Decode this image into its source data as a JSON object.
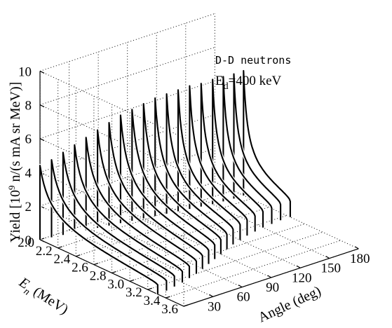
{
  "chart_data": {
    "type": "3d-line",
    "title": "",
    "xlabel": "Angle (deg)",
    "ylabel_main": "E",
    "ylabel_sub": "n",
    "ylabel_rest": " (MeV)",
    "zlabel_main": "Yield [10",
    "zlabel_sup": "9",
    "zlabel_rest": " n/(s mA sr MeV)]",
    "annotation_line1": "D-D neutrons",
    "annotation_E": "E",
    "annotation_sub": "d",
    "annotation_rest": "=400 keV",
    "xlim": [
      0,
      180
    ],
    "ylim": [
      2.0,
      3.6
    ],
    "zlim": [
      0,
      10
    ],
    "xticks": [
      "30",
      "60",
      "90",
      "120",
      "150",
      "180"
    ],
    "yticks": [
      "2.0",
      "2.2",
      "2.4",
      "2.6",
      "2.8",
      "3.0",
      "3.2",
      "3.4",
      "3.6"
    ],
    "zticks": [
      "0",
      "2",
      "4",
      "6",
      "8",
      "10"
    ],
    "angles": [
      0,
      10,
      20,
      30,
      40,
      50,
      60,
      70,
      80,
      90,
      100,
      110,
      120,
      130,
      140,
      150,
      160,
      170,
      180
    ],
    "series": [
      {
        "angle": 0,
        "e_min": 2.0,
        "e_max": 3.31,
        "peak_yield": 4.4
      },
      {
        "angle": 10,
        "e_min": 2.02,
        "e_max": 3.3,
        "peak_yield": 4.6
      },
      {
        "angle": 20,
        "e_min": 2.04,
        "e_max": 3.28,
        "peak_yield": 4.9
      },
      {
        "angle": 30,
        "e_min": 2.06,
        "e_max": 3.26,
        "peak_yield": 5.2
      },
      {
        "angle": 40,
        "e_min": 2.08,
        "e_max": 3.23,
        "peak_yield": 5.5
      },
      {
        "angle": 50,
        "e_min": 2.1,
        "e_max": 3.2,
        "peak_yield": 5.8
      },
      {
        "angle": 60,
        "e_min": 2.12,
        "e_max": 3.16,
        "peak_yield": 6.1
      },
      {
        "angle": 70,
        "e_min": 2.14,
        "e_max": 3.12,
        "peak_yield": 6.4
      },
      {
        "angle": 80,
        "e_min": 2.16,
        "e_max": 3.08,
        "peak_yield": 6.6
      },
      {
        "angle": 90,
        "e_min": 2.18,
        "e_max": 3.04,
        "peak_yield": 6.8
      },
      {
        "angle": 100,
        "e_min": 2.2,
        "e_max": 3.0,
        "peak_yield": 7.0
      },
      {
        "angle": 110,
        "e_min": 2.22,
        "e_max": 2.96,
        "peak_yield": 7.1
      },
      {
        "angle": 120,
        "e_min": 2.24,
        "e_max": 2.93,
        "peak_yield": 7.2
      },
      {
        "angle": 130,
        "e_min": 2.26,
        "e_max": 2.9,
        "peak_yield": 7.3
      },
      {
        "angle": 140,
        "e_min": 2.28,
        "e_max": 2.88,
        "peak_yield": 7.3
      },
      {
        "angle": 150,
        "e_min": 2.3,
        "e_max": 2.86,
        "peak_yield": 7.4
      },
      {
        "angle": 160,
        "e_min": 2.31,
        "e_max": 2.85,
        "peak_yield": 7.4
      },
      {
        "angle": 170,
        "e_min": 2.32,
        "e_max": 2.84,
        "peak_yield": 7.4
      },
      {
        "angle": 180,
        "e_min": 2.32,
        "e_max": 2.84,
        "peak_yield": 7.4
      }
    ],
    "grid": true
  }
}
